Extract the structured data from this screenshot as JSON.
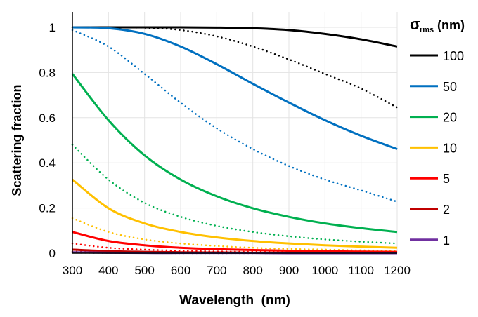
{
  "chart_data": {
    "type": "line",
    "xlabel": "Wavelength  (nm)",
    "ylabel": "Scattering fraction",
    "xlim": [
      300,
      1200
    ],
    "ylim": [
      0,
      1
    ],
    "xticks": [
      "300",
      "400",
      "500",
      "600",
      "700",
      "800",
      "900",
      "1000",
      "1100",
      "1200"
    ],
    "yticks": [
      "0",
      "0.2",
      "0.4",
      "0.6",
      "0.8",
      "1"
    ],
    "grid": true,
    "legend": {
      "position": "right",
      "title_main": "σ",
      "title_sub": "rms",
      "title_unit": "(nm)"
    },
    "x": [
      300,
      400,
      500,
      600,
      700,
      800,
      900,
      1000,
      1100,
      1200
    ],
    "series": [
      {
        "name": "100",
        "color": "#000000",
        "style": "solid",
        "values": [
          1,
          1,
          1,
          1,
          0.999,
          0.996,
          0.988,
          0.971,
          0.947,
          0.915
        ]
      },
      {
        "name": "50",
        "color": "#0070C0",
        "style": "solid",
        "values": [
          1,
          0.996,
          0.971,
          0.915,
          0.837,
          0.75,
          0.667,
          0.589,
          0.52,
          0.461
        ]
      },
      {
        "name": "20",
        "color": "#00B050",
        "style": "solid",
        "values": [
          0.794,
          0.589,
          0.433,
          0.326,
          0.252,
          0.199,
          0.161,
          0.132,
          0.111,
          0.094
        ]
      },
      {
        "name": "10",
        "color": "#FFC000",
        "style": "solid",
        "values": [
          0.326,
          0.199,
          0.132,
          0.094,
          0.07,
          0.054,
          0.043,
          0.035,
          0.029,
          0.024
        ]
      },
      {
        "name": "5",
        "color": "#FF0000",
        "style": "solid",
        "values": [
          0.094,
          0.054,
          0.035,
          0.024,
          0.018,
          0.014,
          0.011,
          0.009,
          0.007,
          0.006
        ]
      },
      {
        "name": "2",
        "color": "#C00000",
        "style": "solid",
        "values": [
          0.016,
          0.009,
          0.006,
          0.004,
          0.003,
          0.002,
          0.002,
          0.001,
          0.001,
          0.001
        ]
      },
      {
        "name": "1",
        "color": "#7030A0",
        "style": "solid",
        "values": [
          0.004,
          0.002,
          0.001,
          0.001,
          0.001,
          0.001,
          0,
          0,
          0,
          0
        ]
      },
      {
        "color": "#000000",
        "style": "dotted",
        "values": [
          1,
          1,
          0.998,
          0.988,
          0.96,
          0.915,
          0.858,
          0.794,
          0.729,
          0.645
        ]
      },
      {
        "color": "#0070C0",
        "style": "dotted",
        "values": [
          0.988,
          0.915,
          0.794,
          0.666,
          0.553,
          0.461,
          0.386,
          0.326,
          0.278,
          0.228
        ]
      },
      {
        "color": "#00B050",
        "style": "dotted",
        "values": [
          0.48,
          0.326,
          0.223,
          0.161,
          0.121,
          0.094,
          0.075,
          0.061,
          0.051,
          0.043
        ]
      },
      {
        "color": "#FFC000",
        "style": "dotted",
        "values": [
          0.155,
          0.094,
          0.061,
          0.043,
          0.032,
          0.024,
          0.019,
          0.016,
          0.013,
          0.011
        ]
      },
      {
        "color": "#FF0000",
        "style": "dotted",
        "values": [
          0.043,
          0.024,
          0.016,
          0.011,
          0.008,
          0.006,
          0.005,
          0.004,
          0.003,
          0.003
        ]
      },
      {
        "color": "#C00000",
        "style": "dotted",
        "values": [
          0.007,
          0.004,
          0.003,
          0.002,
          0.001,
          0.001,
          0.001,
          0.001,
          0,
          0
        ]
      },
      {
        "color": "#7030A0",
        "style": "dotted",
        "values": [
          0.002,
          0.001,
          0.001,
          0,
          0,
          0,
          0,
          0,
          0,
          0
        ]
      }
    ]
  }
}
